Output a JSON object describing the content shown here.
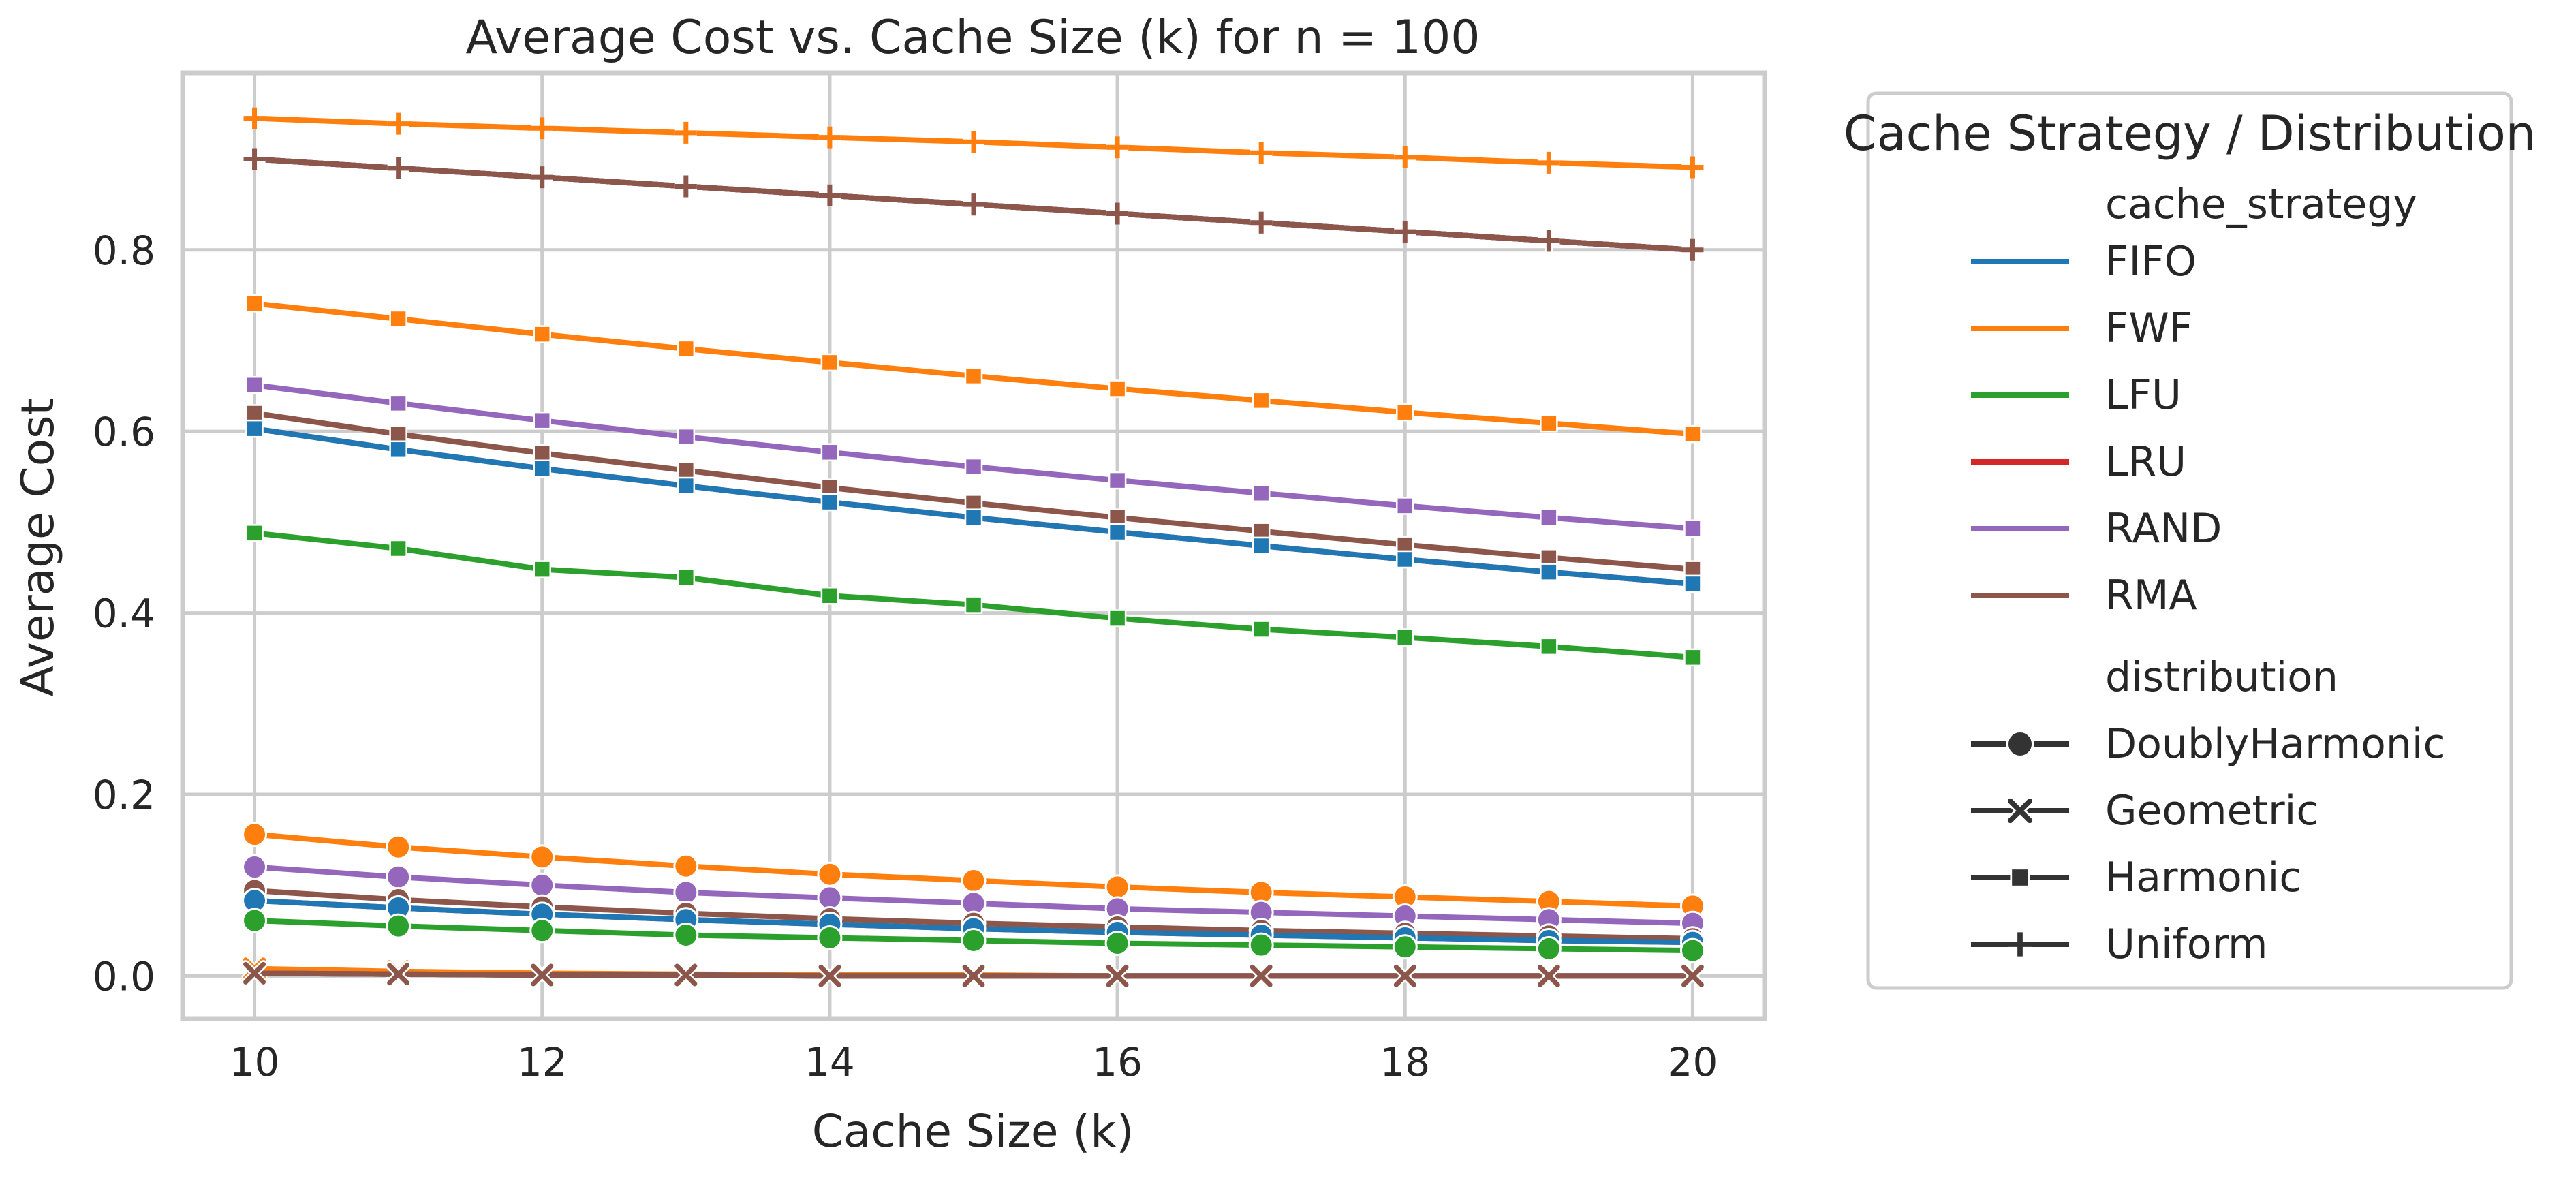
{
  "chart_data": {
    "type": "line",
    "title": "Average Cost vs. Cache Size (k) for n = 100",
    "xlabel": "Cache Size (k)",
    "ylabel": "Average Cost",
    "x": [
      10,
      11,
      12,
      13,
      14,
      15,
      16,
      17,
      18,
      19,
      20
    ],
    "xlim": [
      9.5,
      20.5
    ],
    "ylim": [
      -0.047,
      0.995
    ],
    "xticks": [
      "10",
      "12",
      "14",
      "16",
      "18",
      "20"
    ],
    "yticks": [
      "0.0",
      "0.2",
      "0.4",
      "0.6",
      "0.8"
    ],
    "grid": true,
    "legend": {
      "title": "Cache Strategy / Distribution",
      "placement": "outside-right",
      "hue_header": "cache_strategy",
      "style_header": "distribution",
      "strategies": [
        {
          "name": "FIFO",
          "color": "#1f77b4"
        },
        {
          "name": "FWF",
          "color": "#ff7f0e"
        },
        {
          "name": "LFU",
          "color": "#2ca02c"
        },
        {
          "name": "LRU",
          "color": "#d62728"
        },
        {
          "name": "RAND",
          "color": "#9467bd"
        },
        {
          "name": "RMA",
          "color": "#8c564b"
        }
      ],
      "distributions": [
        {
          "name": "DoublyHarmonic",
          "marker": "circle"
        },
        {
          "name": "Geometric",
          "marker": "x"
        },
        {
          "name": "Harmonic",
          "marker": "square"
        },
        {
          "name": "Uniform",
          "marker": "plus"
        }
      ]
    },
    "series": [
      {
        "strategy": "FIFO",
        "distribution": "Uniform",
        "values": [
          0.9,
          0.89,
          0.88,
          0.87,
          0.86,
          0.85,
          0.84,
          0.83,
          0.82,
          0.81,
          0.8
        ]
      },
      {
        "strategy": "LFU",
        "distribution": "Uniform",
        "values": [
          0.9,
          0.89,
          0.88,
          0.87,
          0.86,
          0.85,
          0.84,
          0.83,
          0.82,
          0.81,
          0.8
        ]
      },
      {
        "strategy": "LRU",
        "distribution": "Uniform",
        "values": [
          0.9,
          0.89,
          0.88,
          0.87,
          0.86,
          0.85,
          0.84,
          0.83,
          0.82,
          0.81,
          0.8
        ]
      },
      {
        "strategy": "RAND",
        "distribution": "Uniform",
        "values": [
          0.9,
          0.89,
          0.88,
          0.87,
          0.86,
          0.85,
          0.84,
          0.83,
          0.82,
          0.81,
          0.8
        ]
      },
      {
        "strategy": "RMA",
        "distribution": "Uniform",
        "values": [
          0.9,
          0.89,
          0.88,
          0.87,
          0.86,
          0.85,
          0.84,
          0.83,
          0.82,
          0.81,
          0.8
        ]
      },
      {
        "strategy": "FWF",
        "distribution": "Uniform",
        "values": [
          0.945,
          0.939,
          0.934,
          0.929,
          0.924,
          0.919,
          0.913,
          0.907,
          0.902,
          0.896,
          0.891
        ]
      },
      {
        "strategy": "FWF",
        "distribution": "Harmonic",
        "values": [
          0.741,
          0.724,
          0.707,
          0.691,
          0.676,
          0.661,
          0.647,
          0.634,
          0.621,
          0.609,
          0.597
        ]
      },
      {
        "strategy": "RAND",
        "distribution": "Harmonic",
        "values": [
          0.651,
          0.631,
          0.612,
          0.594,
          0.577,
          0.561,
          0.546,
          0.532,
          0.518,
          0.505,
          0.493
        ]
      },
      {
        "strategy": "RMA",
        "distribution": "Harmonic",
        "values": [
          0.62,
          0.597,
          0.576,
          0.557,
          0.538,
          0.521,
          0.505,
          0.49,
          0.475,
          0.461,
          0.448
        ]
      },
      {
        "strategy": "LRU",
        "distribution": "Harmonic",
        "values": [
          0.603,
          0.58,
          0.559,
          0.54,
          0.522,
          0.505,
          0.489,
          0.474,
          0.459,
          0.445,
          0.432
        ]
      },
      {
        "strategy": "FIFO",
        "distribution": "Harmonic",
        "values": [
          0.603,
          0.58,
          0.559,
          0.54,
          0.522,
          0.505,
          0.489,
          0.474,
          0.459,
          0.445,
          0.432
        ]
      },
      {
        "strategy": "LFU",
        "distribution": "Harmonic",
        "values": [
          0.488,
          0.471,
          0.448,
          0.439,
          0.419,
          0.409,
          0.394,
          0.382,
          0.373,
          0.363,
          0.351
        ]
      },
      {
        "strategy": "FWF",
        "distribution": "DoublyHarmonic",
        "values": [
          0.156,
          0.142,
          0.131,
          0.121,
          0.112,
          0.105,
          0.098,
          0.092,
          0.087,
          0.082,
          0.077
        ]
      },
      {
        "strategy": "RAND",
        "distribution": "DoublyHarmonic",
        "values": [
          0.12,
          0.109,
          0.1,
          0.092,
          0.086,
          0.08,
          0.074,
          0.07,
          0.066,
          0.062,
          0.058
        ]
      },
      {
        "strategy": "RMA",
        "distribution": "DoublyHarmonic",
        "values": [
          0.094,
          0.084,
          0.076,
          0.069,
          0.063,
          0.058,
          0.054,
          0.05,
          0.047,
          0.044,
          0.041
        ]
      },
      {
        "strategy": "LRU",
        "distribution": "DoublyHarmonic",
        "values": [
          0.083,
          0.075,
          0.068,
          0.062,
          0.057,
          0.052,
          0.048,
          0.045,
          0.042,
          0.039,
          0.037
        ]
      },
      {
        "strategy": "FIFO",
        "distribution": "DoublyHarmonic",
        "values": [
          0.083,
          0.075,
          0.068,
          0.062,
          0.057,
          0.052,
          0.048,
          0.045,
          0.042,
          0.039,
          0.037
        ]
      },
      {
        "strategy": "LFU",
        "distribution": "DoublyHarmonic",
        "values": [
          0.061,
          0.055,
          0.05,
          0.045,
          0.042,
          0.039,
          0.036,
          0.034,
          0.032,
          0.03,
          0.028
        ]
      },
      {
        "strategy": "FWF",
        "distribution": "Geometric",
        "values": [
          0.008,
          0.005,
          0.003,
          0.002,
          0.001,
          0.001,
          0.0,
          0.0,
          0.0,
          0.0,
          0.0
        ]
      },
      {
        "strategy": "FIFO",
        "distribution": "Geometric",
        "values": [
          0.003,
          0.002,
          0.001,
          0.001,
          0.0,
          0.0,
          0.0,
          0.0,
          0.0,
          0.0,
          0.0
        ]
      },
      {
        "strategy": "LFU",
        "distribution": "Geometric",
        "values": [
          0.003,
          0.002,
          0.001,
          0.001,
          0.0,
          0.0,
          0.0,
          0.0,
          0.0,
          0.0,
          0.0
        ]
      },
      {
        "strategy": "LRU",
        "distribution": "Geometric",
        "values": [
          0.003,
          0.002,
          0.001,
          0.001,
          0.0,
          0.0,
          0.0,
          0.0,
          0.0,
          0.0,
          0.0
        ]
      },
      {
        "strategy": "RAND",
        "distribution": "Geometric",
        "values": [
          0.003,
          0.002,
          0.001,
          0.001,
          0.0,
          0.0,
          0.0,
          0.0,
          0.0,
          0.0,
          0.0
        ]
      },
      {
        "strategy": "RMA",
        "distribution": "Geometric",
        "values": [
          0.003,
          0.002,
          0.001,
          0.001,
          0.0,
          0.0,
          0.0,
          0.0,
          0.0,
          0.0,
          0.0
        ]
      }
    ]
  }
}
